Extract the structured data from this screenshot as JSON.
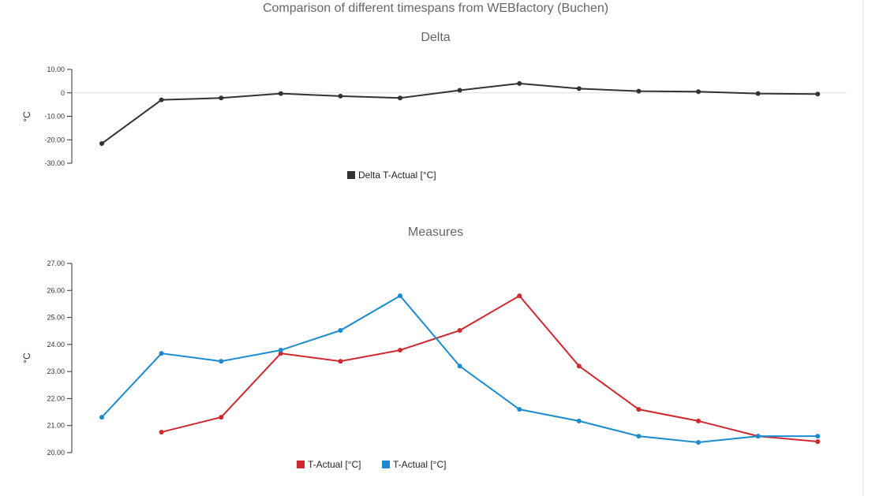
{
  "title": "Comparison of different timespans from WEBfactory (Buchen)",
  "chart_data": [
    {
      "type": "line",
      "title": "Delta",
      "ylabel": "°C",
      "ylim": [
        -30,
        10
      ],
      "yticks": [
        "10.00",
        "0",
        "-10.00",
        "-20.00",
        "-30.00"
      ],
      "ytick_values": [
        10,
        0,
        -10,
        -20,
        -30
      ],
      "grid": "zero line only",
      "legend": "bottom-center",
      "series": [
        {
          "name": "Delta T-Actual [°C]",
          "color": "#333333",
          "values": [
            -21.6,
            -3.0,
            -2.2,
            -0.3,
            -1.4,
            -2.2,
            1.1,
            4.0,
            1.8,
            0.7,
            0.5,
            -0.3,
            -0.5
          ]
        }
      ]
    },
    {
      "type": "line",
      "title": "Measures",
      "ylabel": "°C",
      "ylim": [
        20,
        27
      ],
      "yticks": [
        "27.00",
        "26.00",
        "25.00",
        "24.00",
        "23.00",
        "22.00",
        "21.00",
        "20.00"
      ],
      "ytick_values": [
        27,
        26,
        25,
        24,
        23,
        22,
        21,
        20
      ],
      "grid": "off",
      "legend": "bottom-center",
      "series": [
        {
          "name": "T-Actual [°C]",
          "color": "#d0282e",
          "values": [
            null,
            20.76,
            21.31,
            23.67,
            23.38,
            23.79,
            24.52,
            25.8,
            23.2,
            21.6,
            21.17,
            20.61,
            20.41
          ]
        },
        {
          "name": "T-Actual [°C]",
          "color": "#1b8bd0",
          "values": [
            21.31,
            23.67,
            23.38,
            23.79,
            24.52,
            25.8,
            23.2,
            21.6,
            21.17,
            20.61,
            20.38,
            20.61,
            20.61
          ]
        }
      ]
    }
  ]
}
